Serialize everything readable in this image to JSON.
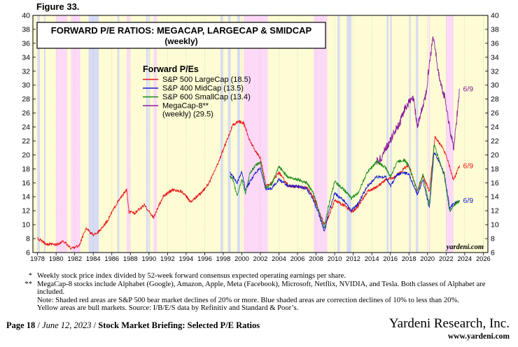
{
  "figure_label": "Figure 33.",
  "chart_data": {
    "type": "line",
    "title": "FORWARD P/E RATIOS: MEGACAP, LARGECAP & SMIDCAP",
    "subtitle": "(weekly)",
    "xlabel": "",
    "ylabel": "",
    "xlim": [
      1977.5,
      2026.5
    ],
    "ylim": [
      6,
      40
    ],
    "yticks": [
      6,
      8,
      10,
      12,
      14,
      16,
      18,
      20,
      22,
      24,
      26,
      28,
      30,
      32,
      34,
      36,
      38,
      40
    ],
    "xticks": [
      1978,
      1980,
      1982,
      1984,
      1986,
      1988,
      1990,
      1992,
      1994,
      1996,
      1998,
      2000,
      2002,
      2004,
      2006,
      2008,
      2010,
      2012,
      2014,
      2016,
      2018,
      2020,
      2022,
      2024,
      2026
    ],
    "xtick_labels": [
      "1978",
      "1980",
      "1982",
      "1984",
      "1986",
      "1988",
      "1990",
      "1992",
      "1994",
      "1996",
      "1998",
      "2000",
      "2002",
      "2004",
      "2006",
      "2008",
      "2010",
      "2012",
      "2014",
      "2016",
      "2018",
      "2020",
      "2022",
      "2024",
      "2026"
    ],
    "legend_title": "Forward P/Es",
    "legend_position": "upper-left",
    "series": [
      {
        "name": "S&P 500 LargeCap (18.5)",
        "color": "#e8161b",
        "end_label": "6/9",
        "x": [
          1978.0,
          1979.0,
          1980.0,
          1980.8,
          1981.6,
          1982.5,
          1983.2,
          1984.0,
          1984.6,
          1985.5,
          1986.5,
          1987.6,
          1987.85,
          1988.5,
          1989.5,
          1990.5,
          1991.5,
          1992.5,
          1993.5,
          1994.5,
          1995.5,
          1996.5,
          1997.5,
          1998.5,
          1999.0,
          1999.6,
          2000.2,
          2000.8,
          2001.5,
          2002.0,
          2002.6,
          2003.2,
          2004.0,
          2005.0,
          2006.0,
          2007.0,
          2007.7,
          2008.3,
          2008.9,
          2009.3,
          2010.0,
          2011.0,
          2011.8,
          2012.5,
          2013.5,
          2014.5,
          2015.5,
          2016.5,
          2017.5,
          2018.0,
          2018.9,
          2019.5,
          2020.2,
          2020.8,
          2021.5,
          2022.0,
          2022.8,
          2023.45
        ],
        "y": [
          8.0,
          7.2,
          7.1,
          7.6,
          6.6,
          7.0,
          9.5,
          8.5,
          9.0,
          10.5,
          13.0,
          15.0,
          11.8,
          11.7,
          12.8,
          11.0,
          14.0,
          15.0,
          14.8,
          13.3,
          14.4,
          16.0,
          19.0,
          22.5,
          24.2,
          24.8,
          24.6,
          22.2,
          20.5,
          19.5,
          15.6,
          16.0,
          17.5,
          15.6,
          15.4,
          15.3,
          14.0,
          12.0,
          10.0,
          11.0,
          13.5,
          12.8,
          11.8,
          12.6,
          14.7,
          15.4,
          16.4,
          16.8,
          18.1,
          18.5,
          14.8,
          17.0,
          14.8,
          22.5,
          21.3,
          20.0,
          16.4,
          18.5
        ]
      },
      {
        "name": "S&P 400 MidCap (13.5)",
        "color": "#1c1cd0",
        "end_label": "6/9",
        "x": [
          1998.7,
          1999.0,
          1999.5,
          2000.0,
          2000.4,
          2000.9,
          2001.5,
          2002.0,
          2002.6,
          2003.2,
          2004.0,
          2005.0,
          2006.0,
          2007.0,
          2007.7,
          2008.3,
          2008.9,
          2009.3,
          2010.0,
          2011.0,
          2011.8,
          2012.5,
          2013.5,
          2014.5,
          2015.5,
          2016.0,
          2016.7,
          2017.5,
          2018.0,
          2018.9,
          2019.5,
          2020.2,
          2020.7,
          2021.2,
          2021.8,
          2022.4,
          2022.8,
          2023.45
        ],
        "y": [
          17.5,
          17.0,
          16.0,
          17.6,
          15.0,
          16.2,
          17.5,
          18.0,
          15.0,
          15.2,
          16.5,
          15.5,
          15.5,
          15.2,
          13.5,
          11.5,
          9.0,
          11.5,
          14.5,
          13.4,
          12.0,
          13.0,
          15.5,
          16.8,
          16.8,
          15.5,
          17.2,
          17.5,
          17.2,
          14.3,
          16.4,
          12.3,
          20.4,
          19.2,
          17.3,
          12.3,
          13.0,
          13.5
        ]
      },
      {
        "name": "S&P 600 SmallCap (13.4)",
        "color": "#168c16",
        "end_label": "",
        "x": [
          1998.7,
          1999.0,
          1999.5,
          2000.0,
          2000.4,
          2000.9,
          2001.5,
          2002.0,
          2002.6,
          2003.2,
          2004.0,
          2005.0,
          2006.0,
          2007.0,
          2007.7,
          2008.3,
          2008.9,
          2009.3,
          2010.0,
          2011.0,
          2011.8,
          2012.5,
          2013.5,
          2014.5,
          2015.5,
          2016.0,
          2016.7,
          2017.5,
          2018.0,
          2018.9,
          2019.5,
          2020.2,
          2020.7,
          2021.2,
          2021.8,
          2022.4,
          2022.8,
          2023.45
        ],
        "y": [
          17.0,
          16.5,
          14.2,
          16.5,
          14.5,
          17.5,
          18.5,
          19.0,
          15.3,
          15.8,
          18.3,
          16.8,
          16.5,
          16.0,
          14.5,
          12.0,
          9.5,
          12.5,
          16.2,
          15.0,
          13.8,
          14.5,
          17.5,
          19.0,
          18.2,
          16.8,
          19.0,
          19.3,
          18.4,
          14.8,
          17.3,
          12.8,
          21.6,
          19.5,
          17.0,
          11.8,
          12.8,
          13.4
        ]
      },
      {
        "name": "MegaCap-8** (weekly) (29.5)",
        "color": "#8b1a9e",
        "end_label": "6/9",
        "x": [
          2014.5,
          2015.0,
          2015.5,
          2016.0,
          2016.5,
          2017.0,
          2017.5,
          2018.0,
          2018.5,
          2018.9,
          2019.3,
          2019.8,
          2020.1,
          2020.6,
          2020.9,
          2021.2,
          2021.6,
          2021.9,
          2022.3,
          2022.8,
          2023.0,
          2023.45
        ],
        "y": [
          19.0,
          19.5,
          21.0,
          22.0,
          23.5,
          24.5,
          26.5,
          27.5,
          28.0,
          24.0,
          26.0,
          28.5,
          32.0,
          37.2,
          34.5,
          31.5,
          29.2,
          28.0,
          24.5,
          21.0,
          23.2,
          29.5
        ]
      }
    ],
    "legend_entries": [
      {
        "lines": [
          "S&P 500 LargeCap (18.5)"
        ],
        "color": "#e8161b"
      },
      {
        "lines": [
          "S&P 400 MidCap (13.5)"
        ],
        "color": "#1c1cd0"
      },
      {
        "lines": [
          "S&P 600 SmallCap (13.4)"
        ],
        "color": "#168c16"
      },
      {
        "lines": [
          "MegaCap-8**",
          "(weekly) (29.5)"
        ],
        "color": "#8b1a9e"
      }
    ],
    "shaded_regions": {
      "bear_markets": [
        [
          1980.0,
          1981.2
        ],
        [
          1981.6,
          1982.6
        ],
        [
          1987.6,
          1987.95
        ],
        [
          1990.5,
          1990.85
        ],
        [
          2000.2,
          2002.8
        ],
        [
          2007.75,
          2009.2
        ],
        [
          2020.12,
          2020.25
        ],
        [
          2022.0,
          2022.8
        ]
      ],
      "corrections": [
        [
          1978.0,
          1978.25
        ],
        [
          1978.7,
          1978.85
        ],
        [
          1983.5,
          1984.6
        ],
        [
          1986.6,
          1986.8
        ],
        [
          1989.7,
          1989.9
        ],
        [
          1990.0,
          1990.1
        ],
        [
          1997.7,
          1997.95
        ],
        [
          1998.5,
          1998.8
        ],
        [
          1999.5,
          1999.8
        ],
        [
          2010.3,
          2010.55
        ],
        [
          2011.3,
          2011.8
        ],
        [
          2015.6,
          2015.8
        ],
        [
          2016.0,
          2016.15
        ],
        [
          2018.05,
          2018.2
        ],
        [
          2018.75,
          2019.0
        ]
      ],
      "bull_color": "#fdfcd4",
      "bear_color": "#fbd9f7",
      "correction_color": "#d7dbf3"
    },
    "watermark": "yardeni.com"
  },
  "notes": [
    {
      "mark": "*",
      "text": "Weekly stock price index divided by 52-week forward consensus expected operating earnings per share."
    },
    {
      "mark": "**",
      "text": "MegaCap-8 stocks include Alphabet (Google), Amazon, Apple, Meta (Facebook), Microsoft, Netflix, NVIDIA, and Tesla. Both classes of Alphabet are included."
    },
    {
      "mark": "",
      "text": "Note: Shaded red areas are S&P 500 bear market declines of 20% or more.  Blue shaded areas are correction declines of 10% to less than 20%."
    },
    {
      "mark": "",
      "text": "Yellow areas are bull markets. Source: I/B/E/S data by Refinitiv and Standard & Poor’s."
    }
  ],
  "footer": {
    "page": "Page 18",
    "date": "June 12, 2023",
    "section": "Stock Market Briefing: Selected P/E Ratios",
    "brand": "Yardeni Research, Inc.",
    "url": "www.yardeni.com"
  }
}
